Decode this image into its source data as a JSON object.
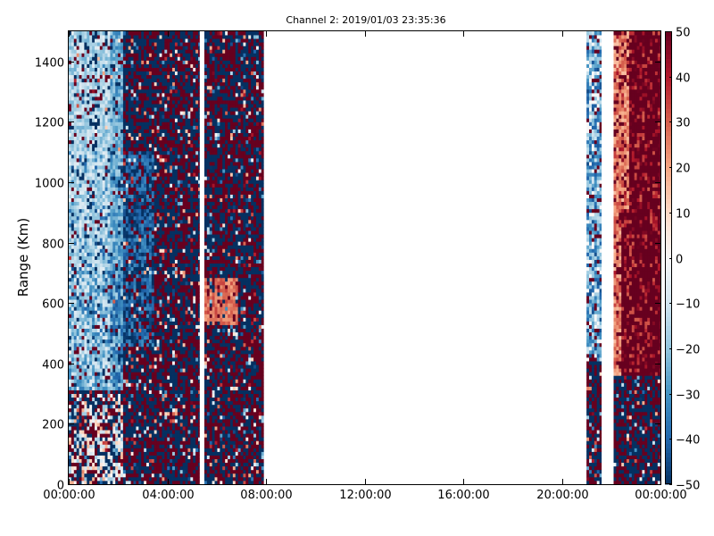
{
  "chart_data": {
    "type": "heatmap",
    "title": "Channel 2: 2019/01/03 23:35:36",
    "xlabel": "",
    "ylabel": "Range (Km)",
    "x_ticks": [
      "00:00:00",
      "04:00:00",
      "08:00:00",
      "12:00:00",
      "16:00:00",
      "20:00:00",
      "00:00:00"
    ],
    "x_range_hours": [
      0,
      24
    ],
    "y_ticks": [
      0,
      200,
      400,
      600,
      800,
      1000,
      1200,
      1400
    ],
    "y_range": [
      0,
      1500
    ],
    "colorbar": {
      "ticks": [
        50,
        40,
        30,
        20,
        10,
        0,
        -10,
        -20,
        -30,
        -40,
        -50
      ],
      "range": [
        -50,
        50
      ],
      "colormap": "RdBu_r",
      "low_color": "#053061",
      "mid_color": "#f7f7f7",
      "high_color": "#67001f"
    },
    "data_segments": [
      {
        "start_hour": 0.0,
        "end_hour": 5.3,
        "character": "light blue/white near 00:00-02:00 at 300-1500 km, saturated noise elsewhere"
      },
      {
        "start_hour": 5.5,
        "end_hour": 7.9,
        "character": "saturated red/blue noise, orange patch near 600 km"
      },
      {
        "start_hour": 21.0,
        "end_hour": 21.6,
        "character": "blue stripes above 400 km"
      },
      {
        "start_hour": 22.1,
        "end_hour": 24.0,
        "character": "red/orange 400-1500 km, noise below 350 km"
      }
    ]
  }
}
